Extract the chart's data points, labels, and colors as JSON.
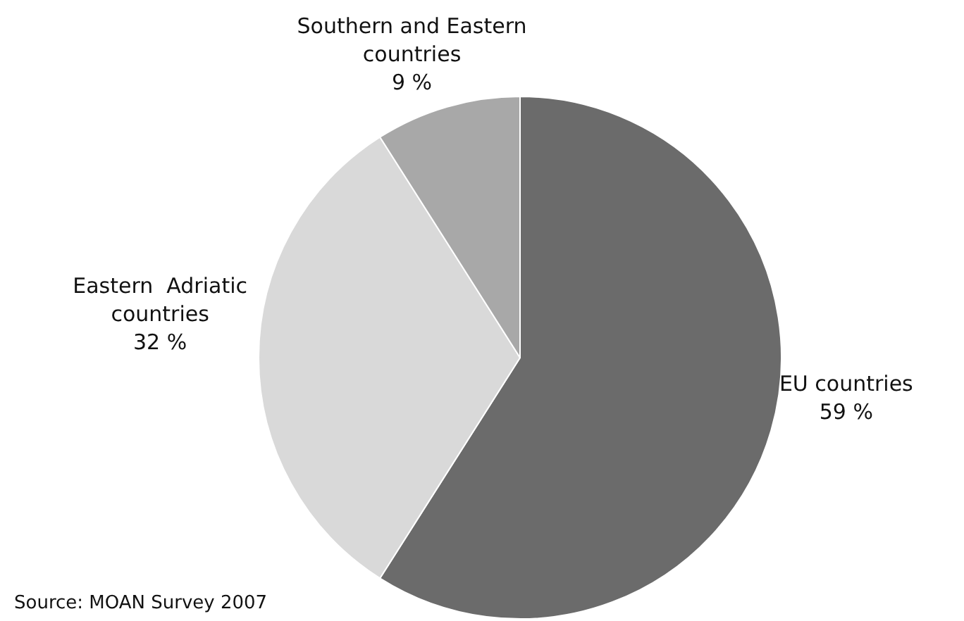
{
  "chart_data": {
    "type": "pie",
    "categories": [
      "EU countries",
      "Eastern  Adriatic countries",
      "Southern and Eastern countries"
    ],
    "values": [
      59,
      32,
      9
    ],
    "colors": [
      "#6b6b6b",
      "#d9d9d9",
      "#a8a8a8"
    ],
    "value_labels": [
      "59 %",
      "32 %",
      "9 %"
    ],
    "legend": false,
    "annotations": [
      "Source: MOAN Survey 2007"
    ]
  }
}
